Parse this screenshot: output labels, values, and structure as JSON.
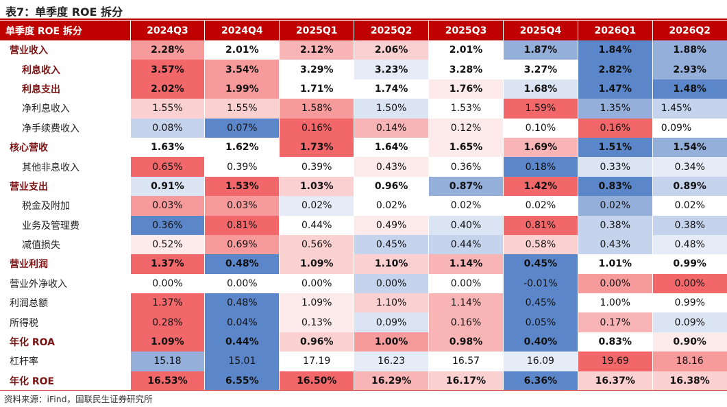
{
  "title": "表7：单季度 ROE 拆分",
  "source": "资料来源：iFind，国联民生证券研究所",
  "header": {
    "row_label": "单季度 ROE 拆分",
    "periods": [
      "2024Q3",
      "2024Q4",
      "2025Q1",
      "2025Q2",
      "2025Q3",
      "2025Q4",
      "2026Q1",
      "2026Q2"
    ]
  },
  "colors": {
    "header_bg": "#c00000",
    "red_strong": "#f2676a",
    "red_mid": "#f79a9c",
    "red_light": "#fbd0d1",
    "red_faint": "#fdeaea",
    "white": "#ffffff",
    "blue_faint": "#e6ecf7",
    "blue_light": "#c5d3ec",
    "blue_mid": "#95afdb",
    "blue_strong": "#5b86c9"
  },
  "rows": [
    {
      "label": "营业收入",
      "bold": true,
      "indent": false,
      "values": [
        "2.28%",
        "2.01%",
        "2.12%",
        "2.06%",
        "2.01%",
        "1.87%",
        "1.84%",
        "1.88%"
      ],
      "shade": [
        "r3",
        "c0",
        "r2",
        "r1",
        "c0",
        "b3",
        "b4",
        "b3"
      ]
    },
    {
      "label": "利息收入",
      "bold": true,
      "indent": true,
      "values": [
        "3.57%",
        "3.54%",
        "3.29%",
        "3.23%",
        "3.28%",
        "3.27%",
        "2.82%",
        "2.93%"
      ],
      "shade": [
        "r4",
        "r3",
        "c0",
        "b0",
        "c0",
        "c0",
        "b4",
        "b3"
      ]
    },
    {
      "label": "利息支出",
      "bold": true,
      "indent": true,
      "values": [
        "2.02%",
        "1.99%",
        "1.71%",
        "1.74%",
        "1.76%",
        "1.68%",
        "1.47%",
        "1.48%"
      ],
      "shade": [
        "r4",
        "r3",
        "c0",
        "c0",
        "r0",
        "b1",
        "b4",
        "b4"
      ]
    },
    {
      "label": "净利息收入",
      "bold": false,
      "indent": true,
      "values": [
        "1.55%",
        "1.55%",
        "1.58%",
        "1.50%",
        "1.53%",
        "1.59%",
        "1.35%",
        "1.45%"
      ],
      "shade": [
        "r1",
        "r1",
        "r3",
        "b1",
        "c0",
        "r4",
        "b3",
        "b2"
      ],
      "align_last": "left"
    },
    {
      "label": "净手续费收入",
      "bold": false,
      "indent": true,
      "values": [
        "0.08%",
        "0.07%",
        "0.16%",
        "0.14%",
        "0.12%",
        "0.10%",
        "0.16%",
        "0.09%"
      ],
      "shade": [
        "b2",
        "b4",
        "r4",
        "r2",
        "r0",
        "c0",
        "r4",
        "c0"
      ],
      "align_last": "left"
    },
    {
      "label": "核心营收",
      "bold": true,
      "indent": false,
      "values": [
        "1.63%",
        "1.62%",
        "1.73%",
        "1.64%",
        "1.65%",
        "1.69%",
        "1.51%",
        "1.54%"
      ],
      "shade": [
        "c0",
        "c0",
        "r4",
        "c0",
        "r0",
        "r2",
        "b4",
        "b3"
      ]
    },
    {
      "label": "其他非息收入",
      "bold": false,
      "indent": true,
      "values": [
        "0.65%",
        "0.39%",
        "0.39%",
        "0.43%",
        "0.36%",
        "0.18%",
        "0.33%",
        "0.34%"
      ],
      "shade": [
        "r4",
        "c0",
        "c0",
        "r0",
        "c0",
        "b4",
        "b1",
        "b0"
      ]
    },
    {
      "label": "营业支出",
      "bold": true,
      "indent": false,
      "values": [
        "0.91%",
        "1.53%",
        "1.03%",
        "0.96%",
        "0.87%",
        "1.42%",
        "0.83%",
        "0.89%"
      ],
      "shade": [
        "b1",
        "r4",
        "r1",
        "c0",
        "b3",
        "r4",
        "b4",
        "b2"
      ]
    },
    {
      "label": "税金及附加",
      "bold": false,
      "indent": true,
      "values": [
        "0.03%",
        "0.03%",
        "0.02%",
        "0.02%",
        "0.02%",
        "0.02%",
        "0.02%",
        "0.02%"
      ],
      "shade": [
        "r3",
        "r3",
        "b0",
        "c0",
        "c0",
        "c0",
        "b3",
        "c0"
      ]
    },
    {
      "label": "业务及管理费",
      "bold": false,
      "indent": true,
      "values": [
        "0.36%",
        "0.81%",
        "0.44%",
        "0.49%",
        "0.40%",
        "0.81%",
        "0.38%",
        "0.38%"
      ],
      "shade": [
        "b4",
        "r4",
        "c0",
        "r0",
        "b1",
        "r4",
        "b2",
        "b2"
      ]
    },
    {
      "label": "减值损失",
      "bold": false,
      "indent": true,
      "values": [
        "0.52%",
        "0.69%",
        "0.56%",
        "0.45%",
        "0.44%",
        "0.58%",
        "0.43%",
        "0.48%"
      ],
      "shade": [
        "r0",
        "r3",
        "r1",
        "b2",
        "b2",
        "r1",
        "b2",
        "b0"
      ]
    },
    {
      "label": "营业利润",
      "bold": true,
      "indent": false,
      "values": [
        "1.37%",
        "0.48%",
        "1.09%",
        "1.10%",
        "1.14%",
        "0.45%",
        "1.01%",
        "0.99%"
      ],
      "shade": [
        "r4",
        "b4",
        "r1",
        "r1",
        "r2",
        "b4",
        "c0",
        "c0"
      ]
    },
    {
      "label": "营业外净收入",
      "bold": false,
      "indent": false,
      "values": [
        "0.00%",
        "0.00%",
        "0.00%",
        "0.00%",
        "0.00%",
        "-0.01%",
        "0.00%",
        "0.00%"
      ],
      "shade": [
        "c0",
        "c0",
        "c0",
        "b2",
        "c0",
        "b4",
        "r3",
        "r4"
      ]
    },
    {
      "label": "利润总额",
      "bold": false,
      "indent": false,
      "values": [
        "1.37%",
        "0.48%",
        "1.09%",
        "1.10%",
        "1.14%",
        "0.45%",
        "1.00%",
        "0.99%"
      ],
      "shade": [
        "r4",
        "b4",
        "r0",
        "r1",
        "r2",
        "b4",
        "c0",
        "c0"
      ]
    },
    {
      "label": "所得税",
      "bold": false,
      "indent": false,
      "values": [
        "0.28%",
        "0.04%",
        "0.13%",
        "0.09%",
        "0.16%",
        "0.05%",
        "0.17%",
        "0.09%"
      ],
      "shade": [
        "r4",
        "b4",
        "r0",
        "b1",
        "r2",
        "b4",
        "r2",
        "b1"
      ]
    },
    {
      "label": "年化 ROA",
      "bold": true,
      "indent": false,
      "values": [
        "1.09%",
        "0.44%",
        "0.96%",
        "1.00%",
        "0.98%",
        "0.40%",
        "0.83%",
        "0.90%"
      ],
      "shade": [
        "r4",
        "b4",
        "r1",
        "r3",
        "r2",
        "b4",
        "c0",
        "r0"
      ]
    },
    {
      "label": "杠杆率",
      "bold": false,
      "indent": false,
      "values": [
        "15.18",
        "15.01",
        "17.19",
        "16.23",
        "16.57",
        "16.09",
        "19.69",
        "18.16"
      ],
      "shade": [
        "b3",
        "b4",
        "c0",
        "b0",
        "c0",
        "b0",
        "r4",
        "r3"
      ]
    },
    {
      "label": "年化 ROE",
      "bold": true,
      "indent": false,
      "values": [
        "16.53%",
        "6.55%",
        "16.50%",
        "16.29%",
        "16.17%",
        "6.36%",
        "16.37%",
        "16.38%"
      ],
      "shade": [
        "r4",
        "b4",
        "r4",
        "r2",
        "r1",
        "b4",
        "r1",
        "r1"
      ]
    }
  ]
}
